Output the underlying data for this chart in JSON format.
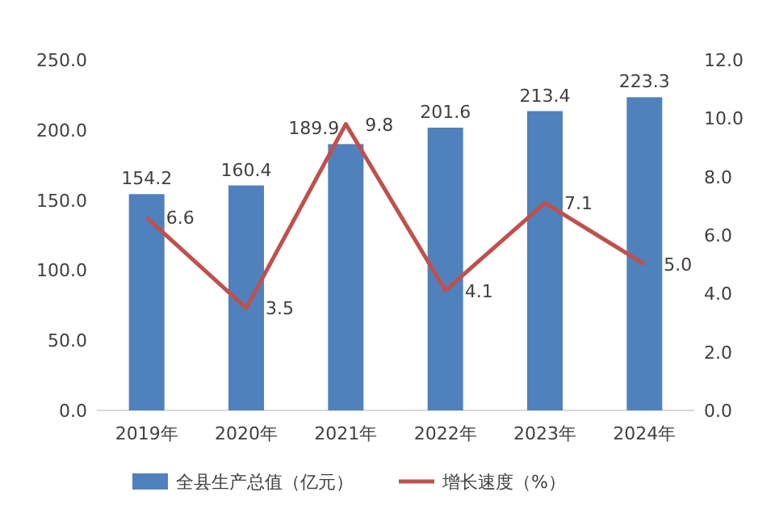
{
  "chart_data": {
    "type": "bar",
    "categories": [
      "2019年",
      "2020年",
      "2021年",
      "2022年",
      "2023年",
      "2024年"
    ],
    "series": [
      {
        "name": "全县生产总值（亿元）",
        "color": "#4f81bd",
        "values": [
          154.2,
          160.4,
          189.9,
          201.6,
          213.4,
          223.3
        ],
        "value_labels": [
          "154.2",
          "160.4",
          "189.9",
          "201.6",
          "213.4",
          "223.3"
        ]
      },
      {
        "name": "增长速度（%）",
        "type": "line",
        "axis": "y2",
        "color": "#c0504d",
        "values": [
          6.6,
          3.5,
          9.8,
          4.1,
          7.1,
          5.0
        ],
        "value_labels": [
          "6.6",
          "3.5",
          "9.8",
          "4.1",
          "7.1",
          "5.0"
        ]
      }
    ],
    "ylim": [
      0,
      250
    ],
    "yticks": [
      {
        "value": 0,
        "label": "0.0"
      },
      {
        "value": 50,
        "label": "50.0"
      },
      {
        "value": 100,
        "label": "100.0"
      },
      {
        "value": 150,
        "label": "150.0"
      },
      {
        "value": 200,
        "label": "200.0"
      },
      {
        "value": 250,
        "label": "250.0"
      }
    ],
    "y2lim": [
      0,
      12
    ],
    "y2ticks": [
      {
        "value": 0,
        "label": "0.0"
      },
      {
        "value": 2,
        "label": "2.0"
      },
      {
        "value": 4,
        "label": "4.0"
      },
      {
        "value": 6,
        "label": "6.0"
      },
      {
        "value": 8,
        "label": "8.0"
      },
      {
        "value": 10,
        "label": "10.0"
      },
      {
        "value": 12,
        "label": "12.0"
      }
    ],
    "legend": "bottom",
    "marker": "none",
    "line_style": "solid",
    "grid": false
  }
}
